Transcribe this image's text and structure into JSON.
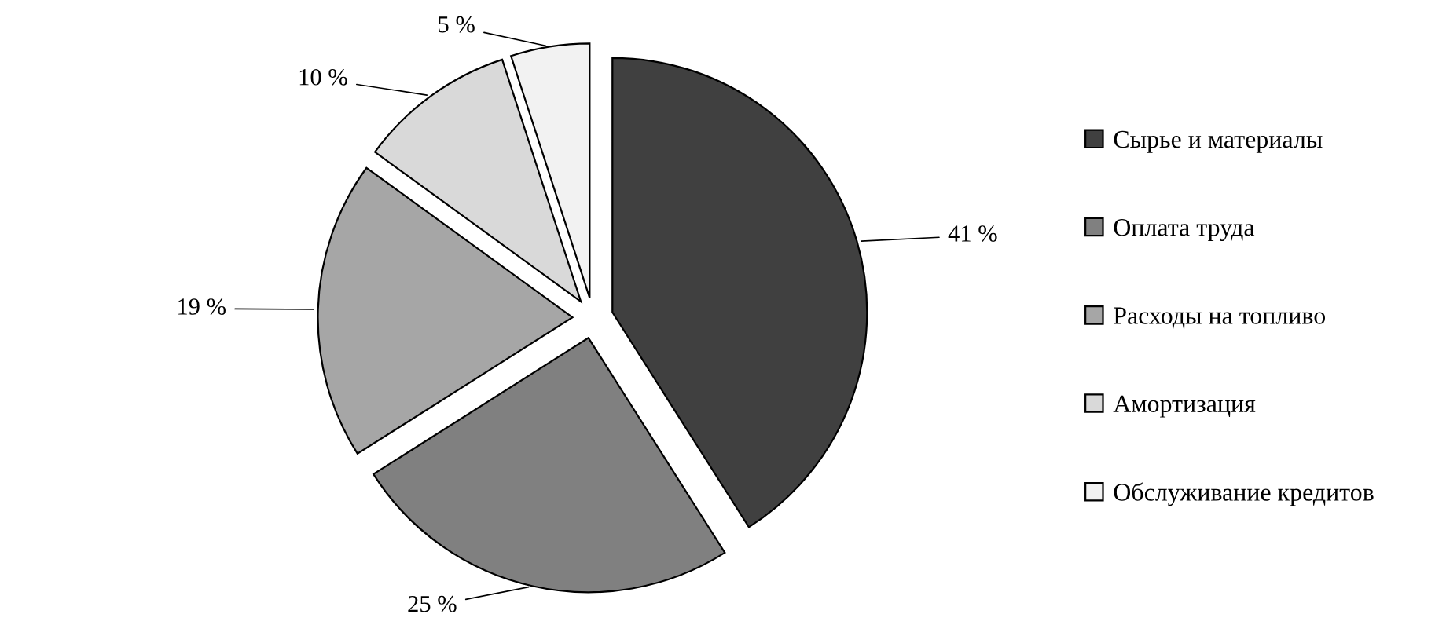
{
  "chart_data": {
    "type": "pie",
    "categories": [
      "Сырье и материалы",
      "Оплата труда",
      "Расходы на топливо",
      "Амортизация",
      "Обслуживание кредитов"
    ],
    "values": [
      41,
      25,
      19,
      10,
      5
    ],
    "value_labels": [
      "41 %",
      "25 %",
      "19 %",
      "10 %",
      "5 %"
    ],
    "colors": [
      "#404040",
      "#808080",
      "#a6a6a6",
      "#d9d9d9",
      "#f2f2f2"
    ],
    "legend": "right"
  }
}
